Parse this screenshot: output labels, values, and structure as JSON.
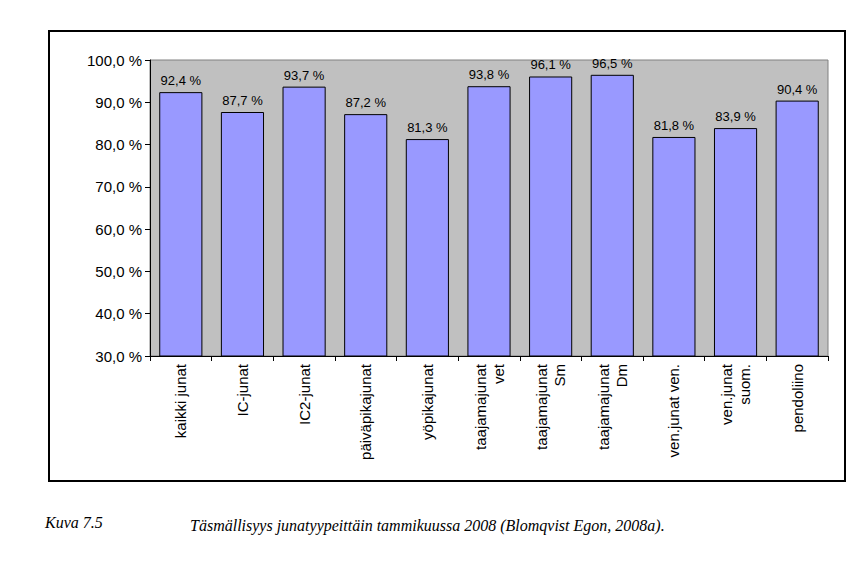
{
  "chart_data": {
    "type": "bar",
    "categories": [
      "kaikki junat",
      "IC-junat",
      "IC2-junat",
      "päiväpikajunat",
      "yöpikajunat",
      "taajamajunat\nvet",
      "taajamajunat\nSm",
      "taajamajunat\nDm",
      "ven.junat ven.",
      "ven.junat\nsuom.",
      "pendoliino"
    ],
    "values": [
      92.4,
      87.7,
      93.7,
      87.2,
      81.3,
      93.8,
      96.1,
      96.5,
      81.8,
      83.9,
      90.4
    ],
    "value_labels": [
      "92,4 %",
      "87,7 %",
      "93,7 %",
      "87,2 %",
      "81,3 %",
      "93,8 %",
      "96,1 %",
      "96,5 %",
      "81,8 %",
      "83,9 %",
      "90,4 %"
    ],
    "color": "#9999ff",
    "ylim": [
      30,
      100
    ],
    "yticks": [
      {
        "value": 30,
        "label": "30,0 %"
      },
      {
        "value": 40,
        "label": "40,0 %"
      },
      {
        "value": 50,
        "label": "50,0 %"
      },
      {
        "value": 60,
        "label": "60,0 %"
      },
      {
        "value": 70,
        "label": "70,0 %"
      },
      {
        "value": 80,
        "label": "80,0 %"
      },
      {
        "value": 90,
        "label": "90,0 %"
      },
      {
        "value": 100,
        "label": "100,0 %"
      }
    ],
    "grid": false,
    "data_labels": true,
    "annotations": [
      "Kuva 7.5",
      "Täsmällisyys junatyypeittäin tammikuussa 2008 (Blomqvist Egon, 2008a)."
    ]
  }
}
